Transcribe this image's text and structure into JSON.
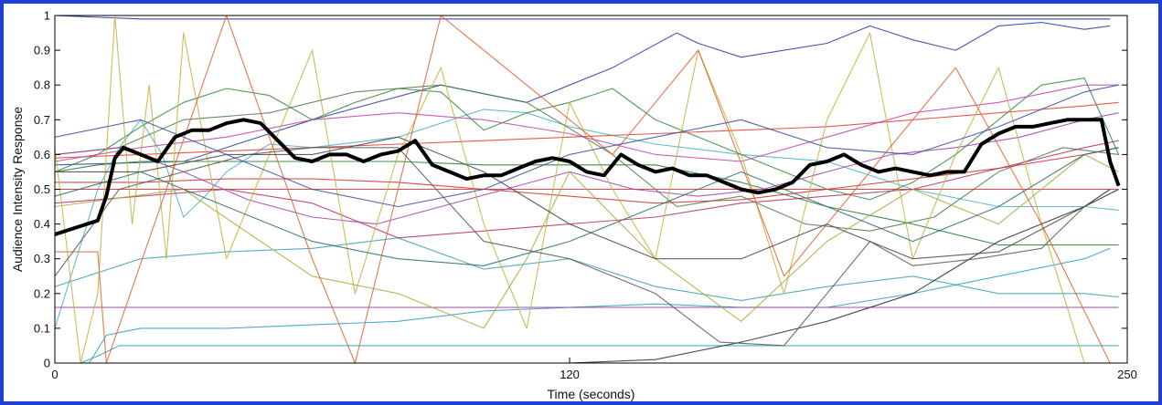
{
  "chart_data": {
    "type": "line",
    "title": "",
    "xlabel": "Time (seconds)",
    "ylabel": "Audience Intensity Response",
    "xlim": [
      0,
      250
    ],
    "ylim": [
      0,
      1
    ],
    "x_ticks": [
      0,
      120,
      250
    ],
    "x_tick_labels": [
      "0",
      "120",
      "250"
    ],
    "y_ticks": [
      0,
      0.1,
      0.2,
      0.3,
      0.4,
      0.5,
      0.6,
      0.7,
      0.8,
      0.9,
      1
    ],
    "y_tick_labels": [
      "0",
      "0.1",
      "0.2",
      "0.3",
      "0.4",
      "0.5",
      "0.6",
      "0.7",
      "0.8",
      "0.9",
      "1"
    ],
    "grid": false,
    "legend": "none",
    "frame_color": "#1f3fd6",
    "series": [
      {
        "color": "#000000",
        "emphasis": true,
        "x": [
          0,
          5,
          10,
          12,
          14,
          16,
          20,
          24,
          28,
          32,
          36,
          40,
          44,
          48,
          52,
          56,
          60,
          64,
          68,
          72,
          76,
          80,
          84,
          88,
          92,
          96,
          100,
          104,
          108,
          112,
          116,
          120,
          124,
          128,
          132,
          136,
          140,
          144,
          148,
          152,
          156,
          160,
          164,
          168,
          172,
          176,
          180,
          184,
          188,
          192,
          196,
          200,
          204,
          208,
          212,
          216,
          220,
          224,
          228,
          232,
          236,
          240,
          244,
          246,
          248
        ],
        "y": [
          0.37,
          0.39,
          0.41,
          0.48,
          0.59,
          0.62,
          0.6,
          0.58,
          0.65,
          0.67,
          0.67,
          0.69,
          0.7,
          0.69,
          0.64,
          0.59,
          0.58,
          0.6,
          0.6,
          0.58,
          0.6,
          0.61,
          0.64,
          0.57,
          0.55,
          0.53,
          0.54,
          0.54,
          0.56,
          0.58,
          0.59,
          0.58,
          0.55,
          0.54,
          0.6,
          0.57,
          0.55,
          0.56,
          0.54,
          0.54,
          0.52,
          0.5,
          0.49,
          0.5,
          0.52,
          0.57,
          0.58,
          0.6,
          0.57,
          0.55,
          0.56,
          0.55,
          0.54,
          0.55,
          0.55,
          0.63,
          0.66,
          0.68,
          0.68,
          0.69,
          0.7,
          0.7,
          0.7,
          0.58,
          0.51
        ]
      },
      {
        "color": "#1a2a9c",
        "x": [
          0,
          20,
          40,
          60,
          70,
          80,
          100,
          120,
          140,
          160,
          170,
          180,
          200,
          220,
          240,
          246
        ],
        "y": [
          1.0,
          0.99,
          0.99,
          0.99,
          0.99,
          0.99,
          0.99,
          0.99,
          0.99,
          0.99,
          0.99,
          0.99,
          0.99,
          0.99,
          0.99,
          0.99
        ]
      },
      {
        "color": "#2a3aa0",
        "x": [
          0,
          30,
          60,
          90,
          110,
          130,
          145,
          150,
          160,
          170,
          180,
          190,
          200,
          210,
          220,
          230,
          240,
          246
        ],
        "y": [
          0.57,
          0.58,
          0.7,
          0.8,
          0.75,
          0.85,
          0.95,
          0.92,
          0.88,
          0.9,
          0.92,
          0.97,
          0.93,
          0.9,
          0.97,
          0.98,
          0.96,
          0.97
        ]
      },
      {
        "color": "#2c9fc4",
        "x": [
          0,
          6,
          10,
          15,
          20,
          30,
          40,
          60,
          80,
          100,
          120,
          140,
          160,
          180,
          200,
          220,
          240,
          248
        ],
        "y": [
          0.0,
          0.0,
          0.02,
          0.05,
          0.05,
          0.05,
          0.05,
          0.05,
          0.05,
          0.05,
          0.05,
          0.05,
          0.05,
          0.05,
          0.05,
          0.05,
          0.05,
          0.05
        ]
      },
      {
        "color": "#2c9fc4",
        "x": [
          0,
          8,
          12,
          20,
          40,
          60,
          80,
          100,
          120,
          140,
          160,
          180,
          200,
          220,
          240,
          246
        ],
        "y": [
          0.0,
          0.0,
          0.08,
          0.1,
          0.1,
          0.11,
          0.12,
          0.15,
          0.16,
          0.17,
          0.16,
          0.16,
          0.2,
          0.25,
          0.3,
          0.33
        ]
      },
      {
        "color": "#4ab0c8",
        "x": [
          0,
          5,
          10,
          15,
          20,
          25,
          30,
          35,
          40,
          50,
          60,
          80,
          100,
          110,
          120,
          140,
          160,
          180,
          200,
          220,
          240,
          248
        ],
        "y": [
          0.1,
          0.3,
          0.5,
          0.62,
          0.7,
          0.6,
          0.42,
          0.48,
          0.55,
          0.63,
          0.62,
          0.65,
          0.73,
          0.72,
          0.68,
          0.63,
          0.6,
          0.58,
          0.5,
          0.45,
          0.45,
          0.44
        ]
      },
      {
        "color": "#3aa0b0",
        "x": [
          0,
          20,
          40,
          60,
          80,
          100,
          120,
          140,
          160,
          180,
          200,
          220,
          240,
          248
        ],
        "y": [
          0.22,
          0.3,
          0.32,
          0.33,
          0.36,
          0.27,
          0.3,
          0.22,
          0.18,
          0.22,
          0.25,
          0.2,
          0.2,
          0.19
        ]
      },
      {
        "color": "#1e7a2a",
        "x": [
          0,
          10,
          20,
          40,
          60,
          80,
          100,
          120,
          140,
          160,
          180,
          200,
          220,
          240,
          248
        ],
        "y": [
          0.55,
          0.57,
          0.58,
          0.58,
          0.58,
          0.58,
          0.57,
          0.57,
          0.57,
          0.52,
          0.45,
          0.4,
          0.34,
          0.34,
          0.34
        ]
      },
      {
        "color": "#2e8b3a",
        "x": [
          0,
          10,
          20,
          30,
          40,
          50,
          60,
          70,
          80,
          90,
          100,
          110,
          120,
          130,
          140,
          150,
          160,
          170,
          180,
          190,
          200,
          210,
          220,
          230,
          240,
          248
        ],
        "y": [
          0.55,
          0.6,
          0.68,
          0.75,
          0.79,
          0.77,
          0.7,
          0.75,
          0.79,
          0.78,
          0.67,
          0.72,
          0.75,
          0.79,
          0.7,
          0.65,
          0.6,
          0.55,
          0.5,
          0.47,
          0.52,
          0.6,
          0.7,
          0.8,
          0.82,
          0.6
        ]
      },
      {
        "color": "#4a7a4a",
        "x": [
          0,
          15,
          30,
          50,
          70,
          90,
          110,
          130,
          145,
          160,
          175,
          190,
          205,
          220,
          235,
          248
        ],
        "y": [
          0.6,
          0.62,
          0.7,
          0.72,
          0.78,
          0.8,
          0.75,
          0.6,
          0.45,
          0.48,
          0.4,
          0.38,
          0.42,
          0.55,
          0.62,
          0.6
        ]
      },
      {
        "color": "#d9282f",
        "x": [
          0,
          20,
          40,
          60,
          80,
          100,
          120,
          140,
          160,
          180,
          200,
          220,
          240,
          248
        ],
        "y": [
          0.5,
          0.5,
          0.5,
          0.5,
          0.5,
          0.5,
          0.5,
          0.5,
          0.5,
          0.5,
          0.5,
          0.5,
          0.5,
          0.5
        ]
      },
      {
        "color": "#e23b2f",
        "x": [
          0,
          20,
          40,
          60,
          80,
          100,
          120,
          140,
          160,
          180,
          200,
          220,
          240,
          248
        ],
        "y": [
          0.59,
          0.6,
          0.61,
          0.62,
          0.63,
          0.64,
          0.65,
          0.66,
          0.67,
          0.68,
          0.7,
          0.72,
          0.74,
          0.75
        ]
      },
      {
        "color": "#c8332a",
        "x": [
          0,
          20,
          40,
          60,
          80,
          100,
          120,
          140,
          160,
          180,
          200,
          220,
          240,
          248
        ],
        "y": [
          0.52,
          0.52,
          0.53,
          0.53,
          0.52,
          0.5,
          0.48,
          0.46,
          0.47,
          0.5,
          0.53,
          0.56,
          0.6,
          0.62
        ]
      },
      {
        "color": "#b72c5a",
        "x": [
          0,
          20,
          40,
          60,
          80,
          100,
          120,
          140,
          160,
          180,
          200,
          220,
          240,
          248
        ],
        "y": [
          0.46,
          0.48,
          0.5,
          0.46,
          0.36,
          0.38,
          0.4,
          0.42,
          0.46,
          0.48,
          0.5,
          0.56,
          0.62,
          0.64
        ]
      },
      {
        "color": "#a23ca8",
        "x": [
          0,
          15,
          30,
          45,
          60,
          75,
          90,
          105,
          120,
          135,
          150,
          165,
          180,
          195,
          210,
          225,
          240,
          248
        ],
        "y": [
          0.6,
          0.62,
          0.55,
          0.47,
          0.42,
          0.4,
          0.45,
          0.5,
          0.55,
          0.5,
          0.48,
          0.5,
          0.55,
          0.6,
          0.62,
          0.65,
          0.7,
          0.72
        ]
      },
      {
        "color": "#8a2e96",
        "x": [
          0,
          40,
          80,
          120,
          160,
          200,
          240,
          248
        ],
        "y": [
          0.16,
          0.16,
          0.16,
          0.16,
          0.16,
          0.16,
          0.16,
          0.16
        ]
      },
      {
        "color": "#c040a8",
        "x": [
          0,
          20,
          40,
          60,
          80,
          100,
          120,
          140,
          160,
          180,
          200,
          220,
          240,
          248
        ],
        "y": [
          0.58,
          0.62,
          0.65,
          0.7,
          0.72,
          0.7,
          0.66,
          0.6,
          0.58,
          0.65,
          0.72,
          0.75,
          0.8,
          0.8
        ]
      },
      {
        "color": "#c2b23a",
        "x": [
          0,
          6,
          10,
          14,
          18,
          22,
          26,
          30,
          40,
          50,
          60,
          70,
          80,
          90,
          100,
          110,
          120,
          130,
          140,
          150,
          160,
          170,
          180,
          190,
          200,
          210,
          220,
          230,
          240,
          248
        ],
        "y": [
          0.62,
          0.0,
          0.2,
          1.0,
          0.4,
          0.8,
          0.3,
          0.95,
          0.3,
          0.6,
          0.9,
          0.2,
          0.6,
          0.85,
          0.4,
          0.1,
          0.75,
          0.5,
          0.3,
          0.9,
          0.6,
          0.2,
          0.7,
          0.95,
          0.3,
          0.6,
          0.85,
          0.4,
          0.0,
          0.0
        ]
      },
      {
        "color": "#a9a93a",
        "x": [
          0,
          30,
          60,
          80,
          100,
          110,
          120,
          140,
          160,
          180,
          200,
          220,
          240,
          248
        ],
        "y": [
          0.45,
          0.5,
          0.25,
          0.2,
          0.1,
          0.3,
          0.55,
          0.3,
          0.12,
          0.35,
          0.5,
          0.4,
          0.6,
          0.55
        ]
      },
      {
        "color": "#e06030",
        "x": [
          0,
          10,
          12,
          40,
          60,
          70,
          90,
          110,
          130,
          150,
          170,
          190,
          210,
          230,
          246
        ],
        "y": [
          0.32,
          0.32,
          0.0,
          1.0,
          0.3,
          0.0,
          1.0,
          0.8,
          0.6,
          0.9,
          0.25,
          0.55,
          0.85,
          0.4,
          0.0
        ]
      },
      {
        "color": "#2b2b2b",
        "x": [
          0,
          10,
          20,
          40,
          60,
          80,
          100,
          120,
          140,
          160,
          180,
          200,
          220,
          240,
          246
        ],
        "y": [
          0.0,
          0.0,
          0.0,
          0.0,
          0.0,
          0.0,
          0.0,
          0.0,
          0.01,
          0.06,
          0.12,
          0.2,
          0.35,
          0.45,
          0.5
        ]
      },
      {
        "color": "#444444",
        "x": [
          0,
          20,
          40,
          60,
          80,
          100,
          120,
          140,
          160,
          180,
          200,
          220,
          240,
          248
        ],
        "y": [
          0.55,
          0.55,
          0.6,
          0.6,
          0.65,
          0.55,
          0.4,
          0.3,
          0.3,
          0.4,
          0.3,
          0.32,
          0.45,
          0.5
        ]
      },
      {
        "color": "#555555",
        "x": [
          0,
          15,
          30,
          45,
          60,
          80,
          100,
          120,
          140,
          155,
          170,
          180,
          190,
          200,
          215,
          230,
          240,
          248
        ],
        "y": [
          0.25,
          0.5,
          0.55,
          0.6,
          0.62,
          0.62,
          0.35,
          0.3,
          0.2,
          0.06,
          0.05,
          0.2,
          0.35,
          0.28,
          0.3,
          0.33,
          0.45,
          0.5
        ]
      },
      {
        "color": "#2a6a6a",
        "x": [
          0,
          20,
          40,
          60,
          80,
          100,
          120,
          140,
          160,
          180,
          200,
          220,
          240,
          248
        ],
        "y": [
          0.48,
          0.55,
          0.45,
          0.35,
          0.3,
          0.28,
          0.35,
          0.45,
          0.55,
          0.45,
          0.35,
          0.45,
          0.6,
          0.62
        ]
      },
      {
        "color": "#3a4aa0",
        "x": [
          0,
          20,
          40,
          60,
          80,
          100,
          120,
          140,
          160,
          180,
          200,
          220,
          240,
          248
        ],
        "y": [
          0.65,
          0.7,
          0.6,
          0.5,
          0.45,
          0.5,
          0.6,
          0.65,
          0.7,
          0.62,
          0.6,
          0.68,
          0.78,
          0.8
        ]
      }
    ]
  }
}
